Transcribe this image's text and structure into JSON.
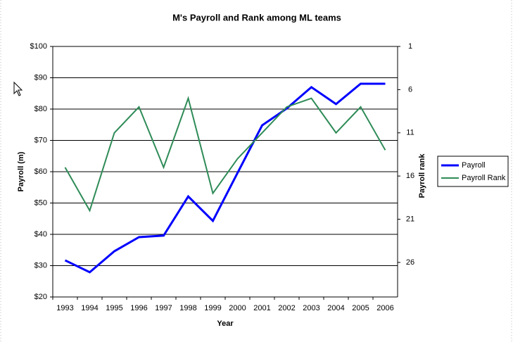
{
  "chart_data": {
    "type": "line",
    "title": "M's Payroll and Rank among ML teams",
    "x_label": "Year",
    "y_label": "Payroll (m)",
    "y2_label": "Payroll rank",
    "categories": [
      "1993",
      "1994",
      "1995",
      "1996",
      "1997",
      "1998",
      "1999",
      "2000",
      "2001",
      "2002",
      "2003",
      "2004",
      "2005",
      "2006"
    ],
    "series": [
      {
        "name": "Payroll",
        "color": "#0000ff",
        "values": [
          31.7,
          27.9,
          34.6,
          39.1,
          39.6,
          52.1,
          44.3,
          59.6,
          74.8,
          80.2,
          87,
          81.6,
          88.1,
          88.1
        ]
      },
      {
        "name": "Payroll Rank",
        "color": "#2e8b57",
        "axis": "y2",
        "values": [
          15,
          20,
          11,
          8,
          15,
          7,
          18,
          14,
          11,
          8,
          7,
          11,
          8,
          13
        ]
      }
    ],
    "ylim": [
      20,
      100
    ],
    "yticks": [
      {
        "value": 20,
        "label": "$20"
      },
      {
        "value": 30,
        "label": "$30"
      },
      {
        "value": 40,
        "label": "$40"
      },
      {
        "value": 50,
        "label": "$50"
      },
      {
        "value": 60,
        "label": "$60"
      },
      {
        "value": 70,
        "label": "$70"
      },
      {
        "value": 80,
        "label": "$80"
      },
      {
        "value": 90,
        "label": "$90"
      },
      {
        "value": 100,
        "label": "$100"
      }
    ],
    "y2lim": [
      30,
      1
    ],
    "y2ticks": [
      1,
      6,
      11,
      16,
      21,
      26
    ],
    "grid": true,
    "legend": "right"
  }
}
